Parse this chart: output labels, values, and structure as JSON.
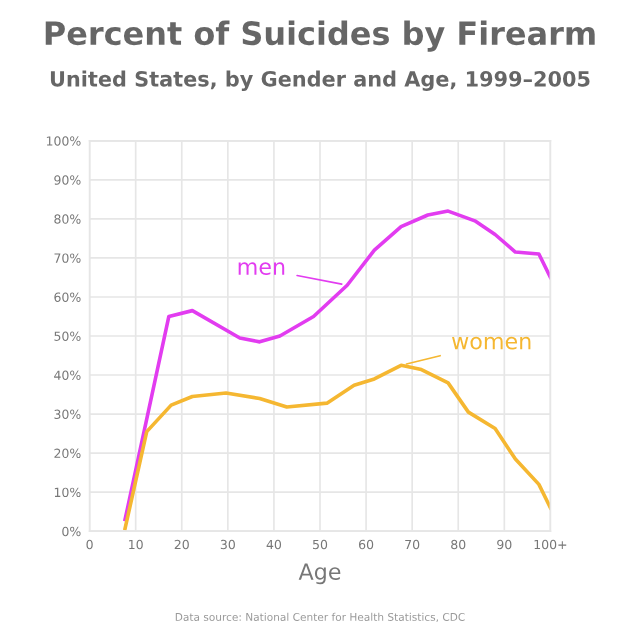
{
  "chart_data": {
    "type": "line",
    "title": "Percent of Suicides by Firearm",
    "subtitle": "United States, by Gender and Age, 1999–2005",
    "xlabel": "Age",
    "series": [
      {
        "name": "men",
        "color": "#e23cf0",
        "x": [
          7.7,
          17.2,
          22.3,
          32.6,
          36.9,
          41.3,
          48.6,
          55.9,
          61.8,
          67.6,
          73.4,
          77.8,
          83.6,
          88,
          92.4,
          97.5,
          100
        ],
        "values": [
          3,
          55,
          56.5,
          49.5,
          48.5,
          50,
          55,
          63,
          72,
          78,
          81,
          82,
          79.5,
          76,
          71.5,
          71,
          65
        ]
      },
      {
        "name": "women",
        "color": "#f5b731",
        "x": [
          7.7,
          12.4,
          17.7,
          22.3,
          29.6,
          36.9,
          42.8,
          51.5,
          57.4,
          61.8,
          67.6,
          72,
          77.8,
          82.2,
          88,
          92.4,
          97.5,
          100
        ],
        "values": [
          0.7,
          25.5,
          32.3,
          34.5,
          35.4,
          34,
          31.8,
          32.8,
          37.4,
          39,
          42.5,
          41.4,
          38,
          30.5,
          26.3,
          18.5,
          12,
          6
        ]
      }
    ],
    "annotations": [
      "Data source: National Center for Health Statistics, CDC"
    ],
    "xlim": [
      0,
      100
    ],
    "xticks": [
      0,
      10,
      20,
      30,
      40,
      50,
      60,
      70,
      80,
      90,
      {
        "value": 100,
        "label": "100+"
      }
    ],
    "ylim": [
      0,
      100
    ],
    "yticks": [
      {
        "value": 0,
        "label": "0%"
      },
      {
        "value": 10,
        "label": "10%"
      },
      {
        "value": 20,
        "label": "20%"
      },
      {
        "value": 30,
        "label": "30%"
      },
      {
        "value": 40,
        "label": "40%"
      },
      {
        "value": 50,
        "label": "50%"
      },
      {
        "value": 60,
        "label": "60%"
      },
      {
        "value": 70,
        "label": "70%"
      },
      {
        "value": 80,
        "label": "80%"
      },
      {
        "value": 90,
        "label": "90%"
      },
      {
        "value": 100,
        "label": "100%"
      }
    ],
    "grid": true,
    "marker": "none",
    "line_style": "solid"
  }
}
